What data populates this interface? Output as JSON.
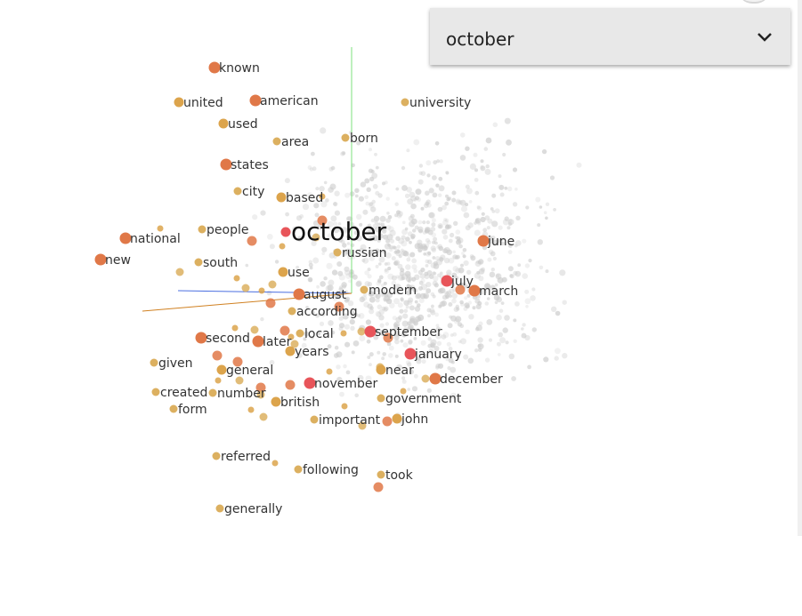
{
  "selector": {
    "selected_value": "october"
  },
  "colors": {
    "selected": "#e8555a",
    "near": "#e07848",
    "mid": "#dca44c",
    "far": "#dcb060",
    "background_point": "#cccccc"
  },
  "focus_word": "october",
  "neighbors": [
    {
      "label": "known"
    },
    {
      "label": "united"
    },
    {
      "label": "american"
    },
    {
      "label": "university"
    },
    {
      "label": "used"
    },
    {
      "label": "born"
    },
    {
      "label": "area"
    },
    {
      "label": "states"
    },
    {
      "label": "city"
    },
    {
      "label": "based"
    },
    {
      "label": "people"
    },
    {
      "label": "national"
    },
    {
      "label": "june"
    },
    {
      "label": "russian"
    },
    {
      "label": "new"
    },
    {
      "label": "south"
    },
    {
      "label": "use"
    },
    {
      "label": "july"
    },
    {
      "label": "august"
    },
    {
      "label": "modern"
    },
    {
      "label": "march"
    },
    {
      "label": "according"
    },
    {
      "label": "second"
    },
    {
      "label": "local"
    },
    {
      "label": "september"
    },
    {
      "label": "later"
    },
    {
      "label": "years"
    },
    {
      "label": "january"
    },
    {
      "label": "given"
    },
    {
      "label": "general"
    },
    {
      "label": "near"
    },
    {
      "label": "december"
    },
    {
      "label": "november"
    },
    {
      "label": "created"
    },
    {
      "label": "number"
    },
    {
      "label": "government"
    },
    {
      "label": "form"
    },
    {
      "label": "british"
    },
    {
      "label": "important"
    },
    {
      "label": "john"
    },
    {
      "label": "referred"
    },
    {
      "label": "following"
    },
    {
      "label": "took"
    },
    {
      "label": "generally"
    }
  ]
}
